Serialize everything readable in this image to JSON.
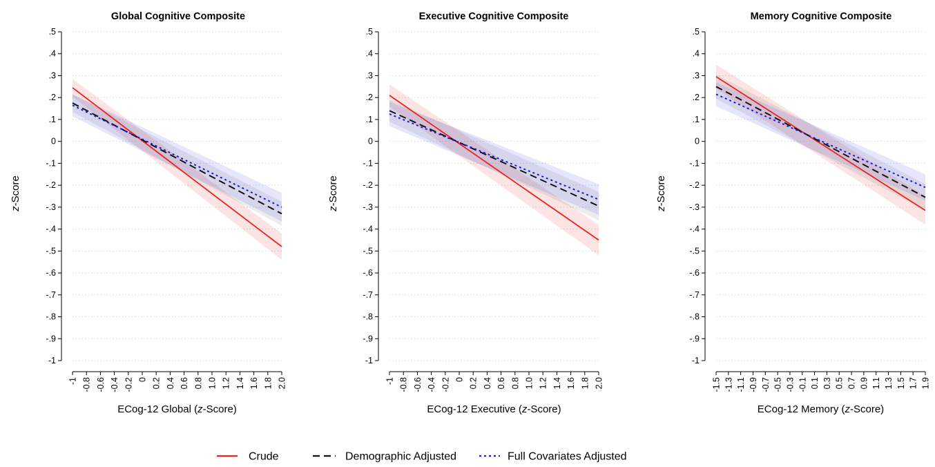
{
  "legend": {
    "placement": "bottom",
    "items": [
      {
        "key": "crude",
        "label": "Crude",
        "color": "#e8251f",
        "dash": "solid"
      },
      {
        "key": "demo",
        "label": "Demographic Adjusted",
        "color": "#111111",
        "dash": "dashed"
      },
      {
        "key": "full",
        "label": "Full Covariates Adjusted",
        "color": "#1a1ae6",
        "dash": "dotted"
      }
    ]
  },
  "ylabel_italic": "z",
  "ylabel_rest": "-Score",
  "chart_data": [
    {
      "type": "line",
      "title": "Global Cognitive Composite",
      "xlabel_prefix": "ECog-12 Global (",
      "xlabel_italic": "z",
      "xlabel_suffix": "-Score)",
      "ylabel": "z-Score",
      "xlim": [
        -1,
        2
      ],
      "ylim": [
        -1,
        0.5
      ],
      "x_ticks": [
        -1,
        -0.8,
        -0.6,
        -0.4,
        -0.2,
        0,
        0.2,
        0.4,
        0.6,
        0.8,
        1.0,
        1.2,
        1.4,
        1.6,
        1.8,
        2.0
      ],
      "x_tick_labels": [
        "-1",
        "-0.8",
        "-0.6",
        "-0.4",
        "-0.2",
        "0",
        "0.2",
        "0.4",
        "0.6",
        "0.8",
        "1.0",
        "1.2",
        "1.4",
        "1.6",
        "1.8",
        "2.0"
      ],
      "y_ticks": [
        0.5,
        0.4,
        0.3,
        0.2,
        0.1,
        0,
        -0.1,
        -0.2,
        -0.3,
        -0.4,
        -0.5,
        -0.6,
        -0.7,
        -0.8,
        -0.9,
        -1
      ],
      "y_tick_labels": [
        ".5",
        ".4",
        ".3",
        ".2",
        ".1",
        "0",
        "-.1",
        "-.2",
        "-.3",
        "-.4",
        "-.5",
        "-.6",
        "-.7",
        "-.8",
        "-.9",
        "-1"
      ],
      "grid": true,
      "series": [
        {
          "name": "Crude",
          "key": "crude",
          "x": [
            -1,
            2.0
          ],
          "y": [
            0.245,
            -0.48
          ],
          "ci_lower": [
            0.205,
            -0.54
          ],
          "ci_upper": [
            0.285,
            -0.42
          ]
        },
        {
          "name": "Demographic Adjusted",
          "key": "demo",
          "x": [
            -1,
            2.0
          ],
          "y": [
            0.175,
            -0.33
          ],
          "ci_lower": [
            0.135,
            -0.385
          ],
          "ci_upper": [
            0.215,
            -0.275
          ]
        },
        {
          "name": "Full Covariates Adjusted",
          "key": "full",
          "x": [
            -1,
            2.0
          ],
          "y": [
            0.165,
            -0.3
          ],
          "ci_lower": [
            0.115,
            -0.365
          ],
          "ci_upper": [
            0.215,
            -0.235
          ]
        }
      ]
    },
    {
      "type": "line",
      "title": "Executive Cognitive Composite",
      "xlabel_prefix": "ECog-12 Executive (",
      "xlabel_italic": "z",
      "xlabel_suffix": "-Score)",
      "ylabel": "z-Score",
      "xlim": [
        -1,
        2
      ],
      "ylim": [
        -1,
        0.5
      ],
      "x_ticks": [
        -1,
        -0.8,
        -0.6,
        -0.4,
        -0.2,
        0,
        0.2,
        0.4,
        0.6,
        0.8,
        1.0,
        1.2,
        1.4,
        1.6,
        1.8,
        2.0
      ],
      "x_tick_labels": [
        "-1",
        "-0.8",
        "-0.6",
        "-0.4",
        "-0.2",
        "0",
        "0.2",
        "0.4",
        "0.6",
        "0.8",
        "1.0",
        "1.2",
        "1.4",
        "1.6",
        "1.8",
        "2.0"
      ],
      "y_ticks": [
        0.5,
        0.4,
        0.3,
        0.2,
        0.1,
        0,
        -0.1,
        -0.2,
        -0.3,
        -0.4,
        -0.5,
        -0.6,
        -0.7,
        -0.8,
        -0.9,
        -1
      ],
      "y_tick_labels": [
        ".5",
        ".4",
        ".3",
        ".2",
        ".1",
        "0",
        "-.1",
        "-.2",
        "-.3",
        "-.4",
        "-.5",
        "-.6",
        "-.7",
        "-.8",
        "-.9",
        "-1"
      ],
      "grid": true,
      "series": [
        {
          "name": "Crude",
          "key": "crude",
          "x": [
            -1,
            2.0
          ],
          "y": [
            0.21,
            -0.45
          ],
          "ci_lower": [
            0.16,
            -0.52
          ],
          "ci_upper": [
            0.26,
            -0.38
          ]
        },
        {
          "name": "Demographic Adjusted",
          "key": "demo",
          "x": [
            -1,
            2.0
          ],
          "y": [
            0.14,
            -0.295
          ],
          "ci_lower": [
            0.09,
            -0.36
          ],
          "ci_upper": [
            0.19,
            -0.23
          ]
        },
        {
          "name": "Full Covariates Adjusted",
          "key": "full",
          "x": [
            -1,
            2.0
          ],
          "y": [
            0.125,
            -0.265
          ],
          "ci_lower": [
            0.07,
            -0.335
          ],
          "ci_upper": [
            0.18,
            -0.195
          ]
        }
      ]
    },
    {
      "type": "line",
      "title": "Memory Cognitive Composite",
      "xlabel_prefix": "ECog-12 Memory (",
      "xlabel_italic": "z",
      "xlabel_suffix": "-Score)",
      "ylabel": "z-Score",
      "xlim": [
        -1.5,
        1.9
      ],
      "ylim": [
        -1,
        0.5
      ],
      "x_ticks": [
        -1.5,
        -1.3,
        -1.1,
        -0.9,
        -0.7,
        -0.5,
        -0.3,
        -0.1,
        0.1,
        0.3,
        0.5,
        0.7,
        0.9,
        1.1,
        1.3,
        1.5,
        1.7,
        1.9
      ],
      "x_tick_labels": [
        "-1.5",
        "-1.3",
        "-1.1",
        "-0.9",
        "-0.7",
        "-0.5",
        "-0.3",
        "-0.1",
        "0.1",
        "0.3",
        "0.5",
        "0.7",
        "0.9",
        "1.1",
        "1.3",
        "1.5",
        "1.7",
        "1.9"
      ],
      "y_ticks": [
        0.5,
        0.4,
        0.3,
        0.2,
        0.1,
        0,
        -0.1,
        -0.2,
        -0.3,
        -0.4,
        -0.5,
        -0.6,
        -0.7,
        -0.8,
        -0.9,
        -1
      ],
      "y_tick_labels": [
        ".5",
        ".4",
        ".3",
        ".2",
        ".1",
        "0",
        "-.1",
        "-.2",
        "-.3",
        "-.4",
        "-.5",
        "-.6",
        "-.7",
        "-.8",
        "-.9",
        "-1"
      ],
      "grid": true,
      "series": [
        {
          "name": "Crude",
          "key": "crude",
          "x": [
            -1.5,
            1.9
          ],
          "y": [
            0.295,
            -0.315
          ],
          "ci_lower": [
            0.24,
            -0.38
          ],
          "ci_upper": [
            0.35,
            -0.25
          ]
        },
        {
          "name": "Demographic Adjusted",
          "key": "demo",
          "x": [
            -1.5,
            1.9
          ],
          "y": [
            0.25,
            -0.255
          ],
          "ci_lower": [
            0.195,
            -0.315
          ],
          "ci_upper": [
            0.305,
            -0.195
          ]
        },
        {
          "name": "Full Covariates Adjusted",
          "key": "full",
          "x": [
            -1.5,
            1.9
          ],
          "y": [
            0.215,
            -0.21
          ],
          "ci_lower": [
            0.16,
            -0.27
          ],
          "ci_upper": [
            0.27,
            -0.15
          ]
        }
      ]
    }
  ]
}
